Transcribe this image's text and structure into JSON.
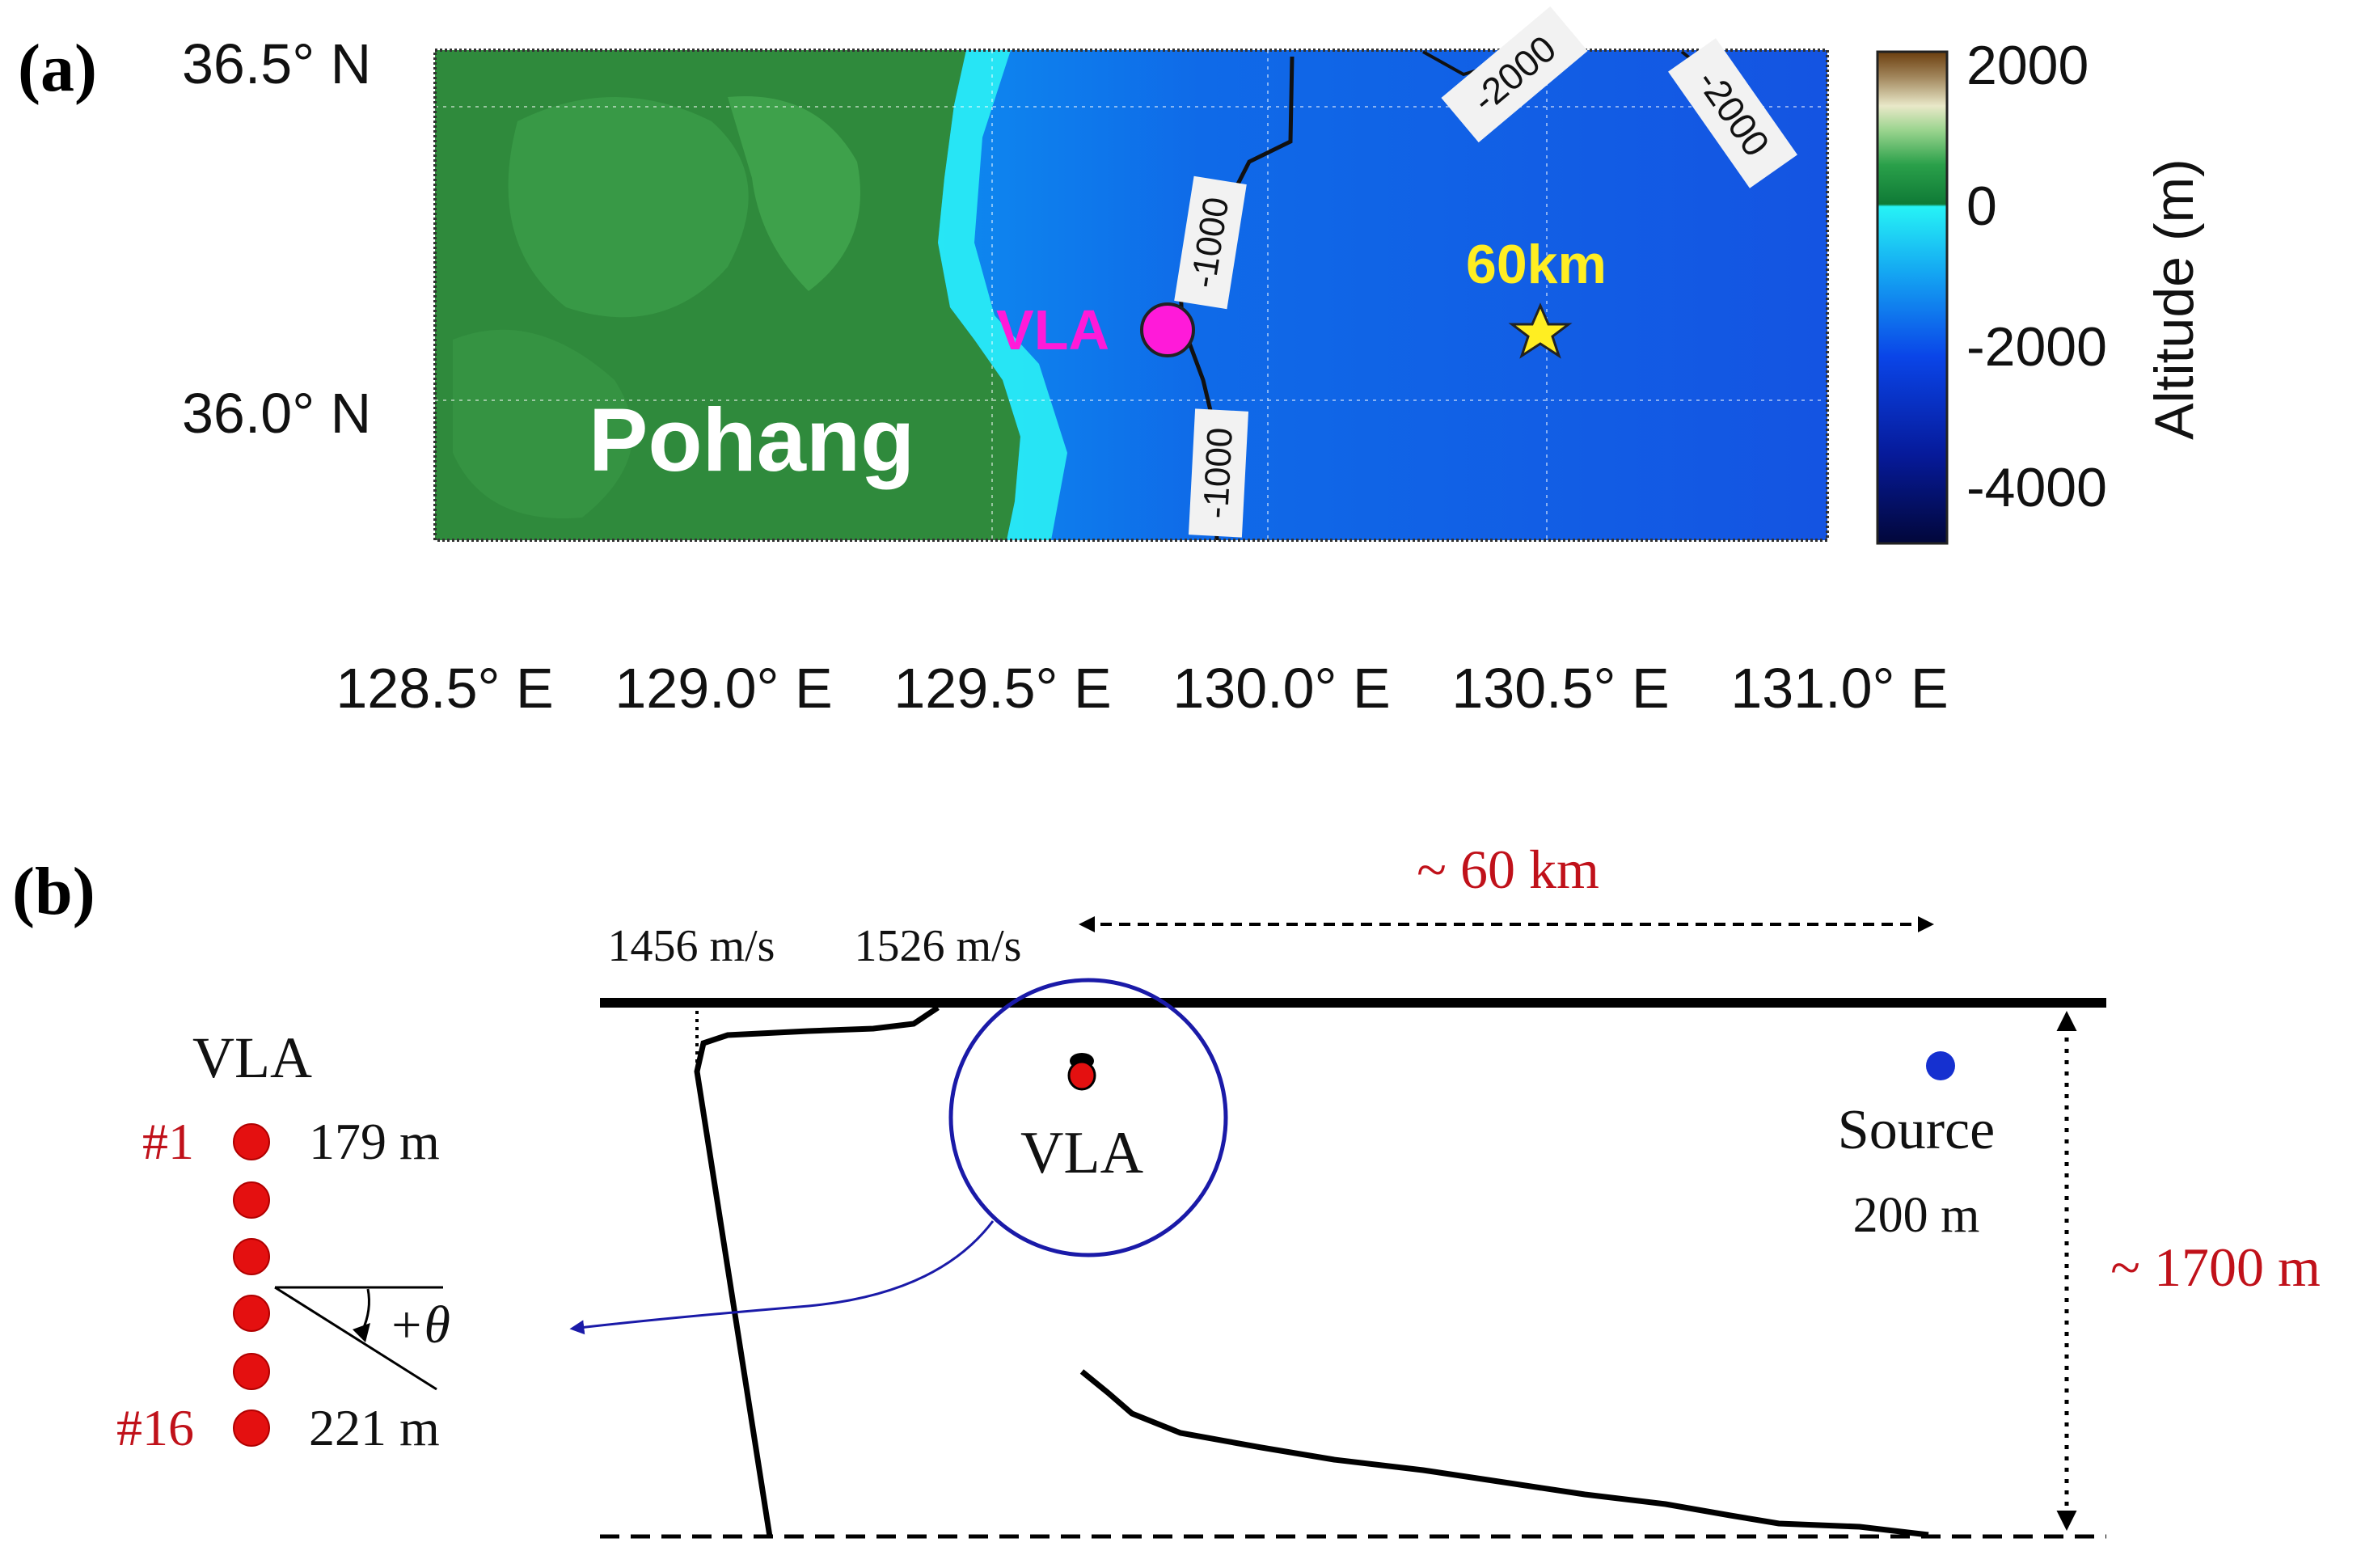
{
  "panel_a": {
    "label": "(a)",
    "lat_labels": [
      "36.5° N",
      "36.0° N"
    ],
    "lon_labels": [
      "128.5° E",
      "129.0° E",
      "129.5° E",
      "130.0° E",
      "130.5° E",
      "131.0° E"
    ],
    "place_label": "Pohang",
    "vla_label": "VLA",
    "source_range_label": "60km",
    "contour_labels": [
      "-1000",
      "-1000",
      "-2000",
      "-2000"
    ],
    "colorbar": {
      "title": "Altitude (m)",
      "ticks": [
        "2000",
        "0",
        "-2000",
        "-4000"
      ]
    },
    "colors": {
      "land": "#2f8a3c",
      "shelf": "#22e6f0",
      "deep": "#1565e6",
      "vla_marker": "#ff1ad9",
      "star": "#ffee22"
    },
    "icons": [
      "star-icon"
    ]
  },
  "panel_b": {
    "label": "(b)",
    "range_label": "~ 60 km",
    "depth_label": "~ 1700 m",
    "ssp_labels": [
      "1456 m/s",
      "1526 m/s"
    ],
    "vla_label": "VLA",
    "source_label": "Source",
    "source_depth": "200 m",
    "array": {
      "title": "VLA",
      "first_element": "#1",
      "first_depth": "179 m",
      "last_element": "#16",
      "last_depth": "221 m",
      "angle_label": "+θ"
    },
    "colors": {
      "annotation": "#c0111a",
      "element": "#e41010",
      "source_dot": "#1530d0",
      "circle": "#1a1aa8"
    }
  }
}
